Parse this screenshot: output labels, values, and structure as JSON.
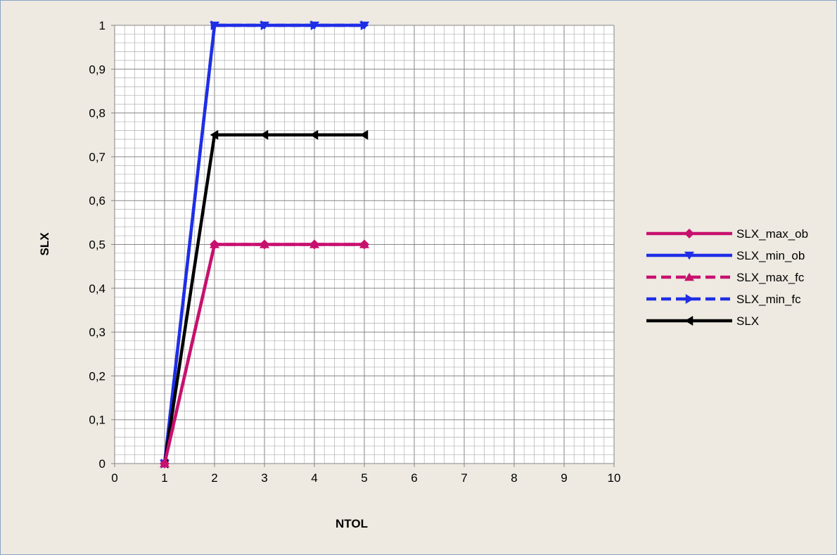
{
  "chart_data": {
    "type": "line",
    "xlabel": "NTOL",
    "ylabel": "SLX",
    "xlim": [
      0,
      10
    ],
    "ylim": [
      0,
      1
    ],
    "x_ticks": [
      "0",
      "1",
      "2",
      "3",
      "4",
      "5",
      "6",
      "7",
      "8",
      "9",
      "10"
    ],
    "y_ticks": [
      "0",
      "0,1",
      "0,2",
      "0,3",
      "0,4",
      "0,5",
      "0,6",
      "0,7",
      "0,8",
      "0,9",
      "1"
    ],
    "grid": true,
    "legend_position": "right",
    "series": [
      {
        "name": "SLX_max_ob",
        "color": "#c8106e",
        "marker": "diamond",
        "dash": false,
        "x": [
          1,
          2,
          3,
          4,
          5
        ],
        "y": [
          0,
          0.5,
          0.5,
          0.5,
          0.5
        ]
      },
      {
        "name": "SLX_min_ob",
        "color": "#1f2ee6",
        "marker": "triangle-down",
        "dash": false,
        "x": [
          1,
          2,
          3,
          4,
          5
        ],
        "y": [
          0,
          1,
          1,
          1,
          1
        ]
      },
      {
        "name": "SLX_max_fc",
        "color": "#c8106e",
        "marker": "triangle-up",
        "dash": true,
        "x": [
          1,
          2,
          3,
          4,
          5
        ],
        "y": [
          0,
          0.5,
          0.5,
          0.5,
          0.5
        ]
      },
      {
        "name": "SLX_min_fc",
        "color": "#1f2ee6",
        "marker": "triangle-right",
        "dash": true,
        "x": [
          1,
          2,
          3,
          4,
          5
        ],
        "y": [
          0,
          1,
          1,
          1,
          1
        ]
      },
      {
        "name": "SLX",
        "color": "#000000",
        "marker": "triangle-left",
        "dash": false,
        "x": [
          1,
          2,
          3,
          4,
          5
        ],
        "y": [
          0,
          0.75,
          0.75,
          0.75,
          0.75
        ]
      }
    ]
  }
}
